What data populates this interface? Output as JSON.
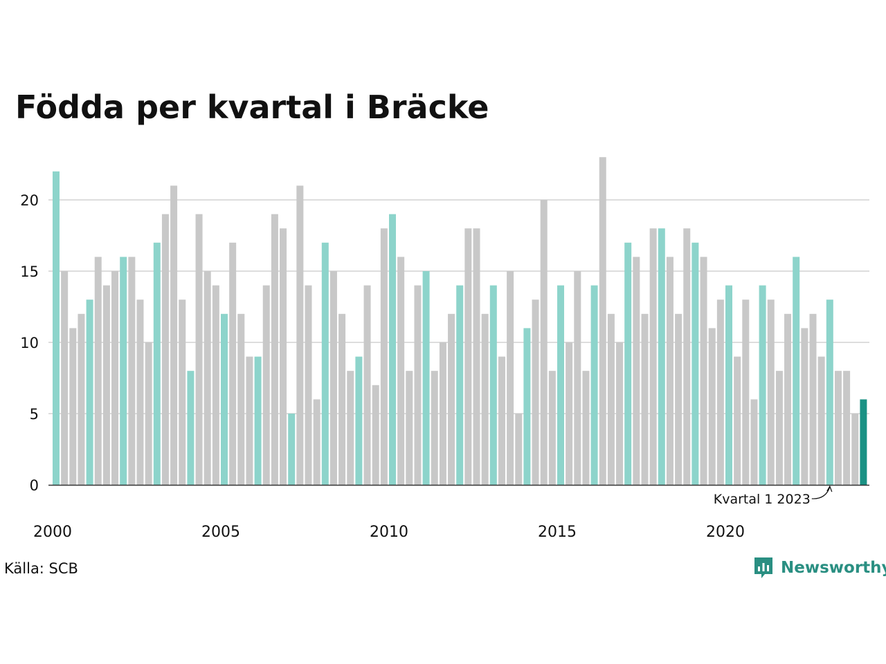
{
  "title": "Födda per kvartal i Bräcke",
  "source": "Källa: SCB",
  "brand": "Newsworthy",
  "colors": {
    "grey": "#c8c8c8",
    "q1": "#8dd4cb",
    "latest": "#1a9184",
    "grid": "#dddddd",
    "axis": "#333333",
    "brand": "#2a8f82"
  },
  "chart_data": {
    "type": "bar",
    "title": "Födda per kvartal i Bräcke",
    "xlabel": "",
    "ylabel": "",
    "ylim": [
      0,
      23
    ],
    "yticks": [
      0,
      5,
      10,
      15,
      20
    ],
    "xticks": [
      "2000",
      "2005",
      "2010",
      "2015",
      "2020"
    ],
    "grid": true,
    "annotation": "Kvartal 1 2023",
    "series": [
      {
        "values": [
          22,
          15,
          11,
          12,
          13,
          16,
          14,
          15,
          16,
          16,
          13,
          10,
          17,
          19,
          21,
          13,
          8,
          19,
          15,
          14,
          12,
          17,
          12,
          9,
          9,
          14,
          19,
          18,
          5,
          21,
          14,
          6,
          17,
          15,
          12,
          8,
          9,
          14,
          7,
          18,
          19,
          16,
          8,
          14,
          15,
          8,
          10,
          12,
          14,
          18,
          18,
          12,
          14,
          9,
          15,
          5,
          11,
          13,
          20,
          8,
          14,
          10,
          15,
          8,
          14,
          23,
          12,
          10,
          17,
          16,
          12,
          18,
          18,
          16,
          12,
          18,
          17,
          16,
          11,
          13,
          14,
          9,
          13,
          6,
          14,
          13,
          8,
          12,
          16,
          11,
          12,
          9,
          13,
          8,
          8,
          5,
          6
        ]
      }
    ],
    "categories": [
      "2000 K1",
      "2000 K2",
      "2000 K3",
      "2000 K4",
      "2001 K1",
      "2001 K2",
      "2001 K3",
      "2001 K4",
      "2002 K1",
      "2002 K2",
      "2002 K3",
      "2002 K4",
      "2003 K1",
      "2003 K2",
      "2003 K3",
      "2003 K4",
      "2004 K1",
      "2004 K2",
      "2004 K3",
      "2004 K4",
      "2005 K1",
      "2005 K2",
      "2005 K3",
      "2005 K4",
      "2006 K1",
      "2006 K2",
      "2006 K3",
      "2006 K4",
      "2007 K1",
      "2007 K2",
      "2007 K3",
      "2007 K4",
      "2008 K1",
      "2008 K2",
      "2008 K3",
      "2008 K4",
      "2009 K1",
      "2009 K2",
      "2009 K3",
      "2009 K4",
      "2010 K1",
      "2010 K2",
      "2010 K3",
      "2010 K4",
      "2011 K1",
      "2011 K2",
      "2011 K3",
      "2011 K4",
      "2012 K1",
      "2012 K2",
      "2012 K3",
      "2012 K4",
      "2013 K1",
      "2013 K2",
      "2013 K3",
      "2013 K4",
      "2014 K1",
      "2014 K2",
      "2014 K3",
      "2014 K4",
      "2015 K1",
      "2015 K2",
      "2015 K3",
      "2015 K4",
      "2016 K1",
      "2016 K2",
      "2016 K3",
      "2016 K4",
      "2017 K1",
      "2017 K2",
      "2017 K3",
      "2017 K4",
      "2018 K1",
      "2018 K2",
      "2018 K3",
      "2018 K4",
      "2019 K1",
      "2019 K2",
      "2019 K3",
      "2019 K4",
      "2020 K1",
      "2020 K2",
      "2020 K3",
      "2020 K4",
      "2021 K1",
      "2021 K2",
      "2021 K3",
      "2021 K4",
      "2022 K1",
      "2022 K2",
      "2022 K3",
      "2022 K4",
      "2023 K1",
      "2023 K2",
      "2023 K3",
      "2023 K4",
      "2024 K1"
    ]
  }
}
